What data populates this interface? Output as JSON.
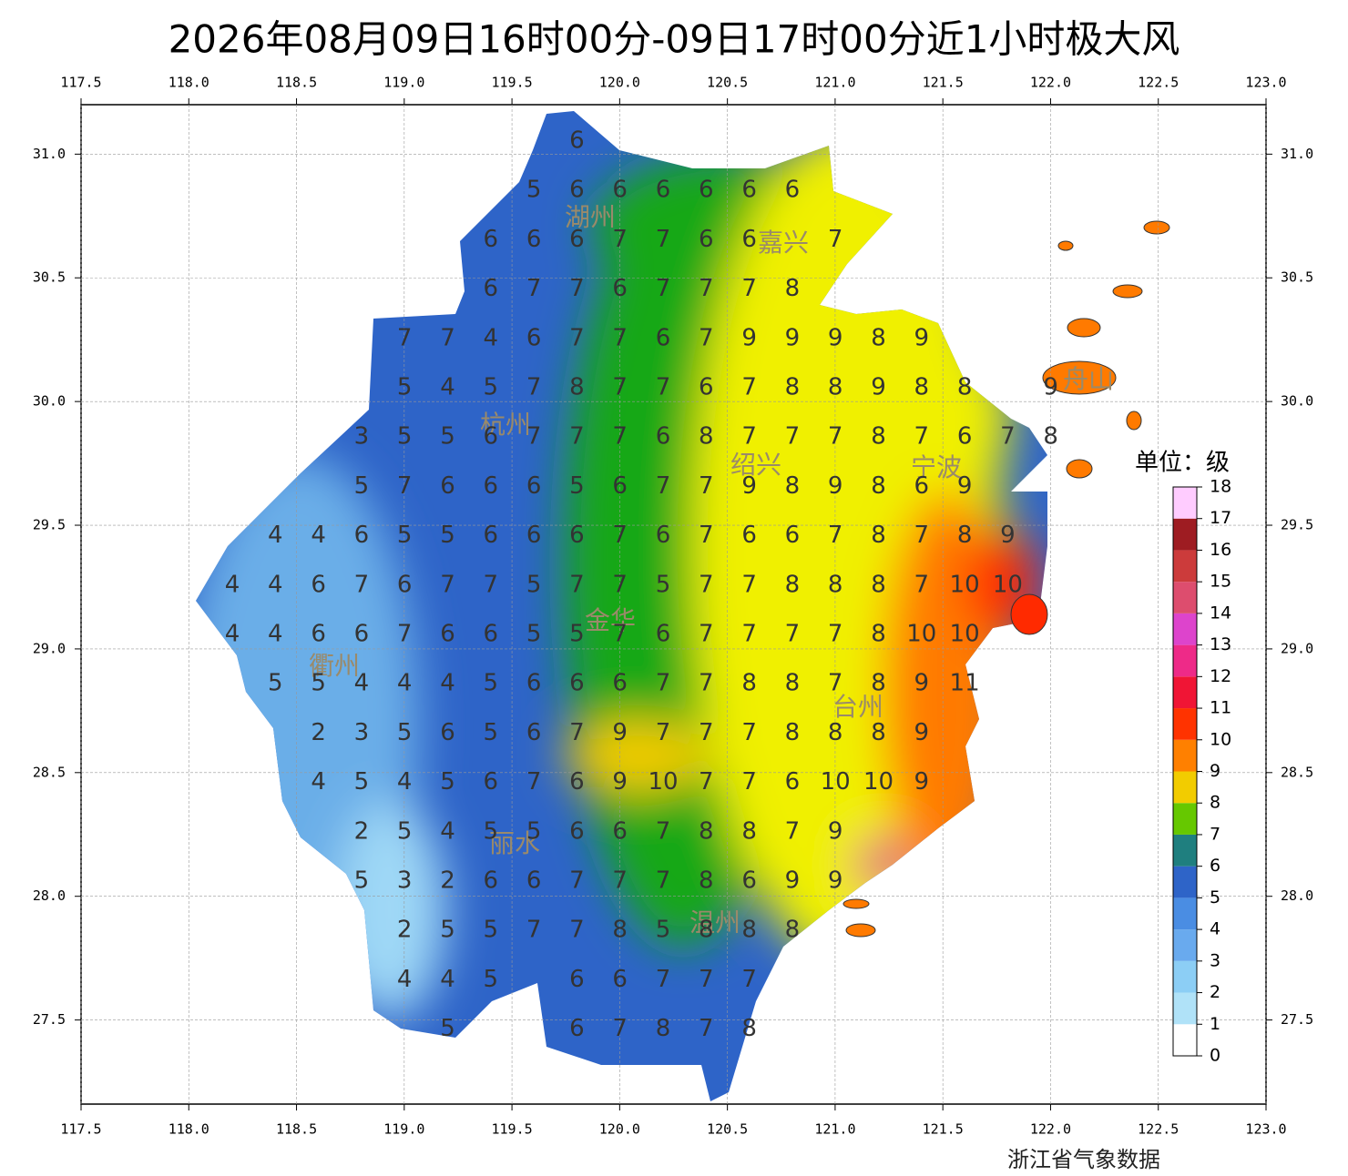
{
  "title": "2026年08月09日16时00分-09日17时00分近1小时极大风",
  "map": {
    "xlim": [
      117.5,
      123.0
    ],
    "ylim": [
      27.16,
      31.2
    ],
    "xticks": [
      {
        "value": 117.5,
        "label": "117.5"
      },
      {
        "value": 118.0,
        "label": "118.0"
      },
      {
        "value": 118.5,
        "label": "118.5"
      },
      {
        "value": 119.0,
        "label": "119.0"
      },
      {
        "value": 119.5,
        "label": "119.5"
      },
      {
        "value": 120.0,
        "label": "120.0"
      },
      {
        "value": 120.5,
        "label": "120.5"
      },
      {
        "value": 121.0,
        "label": "121.0"
      },
      {
        "value": 121.5,
        "label": "121.5"
      },
      {
        "value": 122.0,
        "label": "122.0"
      },
      {
        "value": 122.5,
        "label": "122.5"
      },
      {
        "value": 123.0,
        "label": "123.0"
      }
    ],
    "yticks": [
      {
        "value": 27.5,
        "label": "27.5"
      },
      {
        "value": 28.0,
        "label": "28.0"
      },
      {
        "value": 28.5,
        "label": "28.5"
      },
      {
        "value": 29.0,
        "label": "29.0"
      },
      {
        "value": 29.5,
        "label": "29.5"
      },
      {
        "value": 30.0,
        "label": "30.0"
      },
      {
        "value": 30.5,
        "label": "30.5"
      },
      {
        "value": 31.0,
        "label": "31.0"
      }
    ],
    "grid": true,
    "cities": [
      "湖州",
      "嘉兴",
      "杭州",
      "绍兴",
      "宁波",
      "舟山",
      "衢州",
      "金华",
      "台州",
      "丽水",
      "温州"
    ],
    "stations": [
      [
        null,
        null,
        null,
        null,
        null,
        null,
        null,
        null,
        6,
        null,
        null,
        null,
        null,
        null,
        null,
        null,
        null,
        null,
        null,
        null
      ],
      [
        null,
        null,
        null,
        null,
        null,
        null,
        null,
        5,
        6,
        6,
        6,
        6,
        6,
        6,
        null,
        null,
        null,
        null,
        null,
        null
      ],
      [
        null,
        null,
        null,
        null,
        null,
        null,
        6,
        6,
        6,
        7,
        7,
        6,
        6,
        null,
        7,
        null,
        null,
        null,
        null,
        null
      ],
      [
        null,
        null,
        null,
        null,
        null,
        null,
        6,
        7,
        7,
        6,
        7,
        7,
        7,
        8,
        null,
        null,
        null,
        null,
        null,
        null
      ],
      [
        null,
        null,
        null,
        null,
        7,
        7,
        4,
        6,
        7,
        7,
        6,
        7,
        9,
        9,
        9,
        8,
        9,
        null,
        null,
        null
      ],
      [
        null,
        null,
        null,
        null,
        5,
        4,
        5,
        7,
        8,
        7,
        7,
        6,
        7,
        8,
        8,
        9,
        8,
        8,
        null,
        9
      ],
      [
        null,
        null,
        null,
        3,
        5,
        5,
        6,
        7,
        7,
        7,
        6,
        8,
        7,
        7,
        7,
        8,
        7,
        6,
        7,
        8
      ],
      [
        null,
        null,
        null,
        5,
        7,
        6,
        6,
        6,
        5,
        6,
        7,
        7,
        9,
        8,
        9,
        8,
        6,
        9,
        null,
        null
      ],
      [
        null,
        4,
        4,
        6,
        5,
        5,
        6,
        6,
        6,
        7,
        6,
        7,
        6,
        6,
        7,
        8,
        7,
        8,
        9,
        null
      ],
      [
        4,
        4,
        6,
        7,
        6,
        7,
        7,
        5,
        7,
        7,
        5,
        7,
        7,
        8,
        8,
        8,
        7,
        10,
        10,
        null
      ],
      [
        4,
        4,
        6,
        6,
        7,
        6,
        6,
        5,
        5,
        7,
        6,
        7,
        7,
        7,
        7,
        8,
        10,
        10,
        null,
        null
      ],
      [
        null,
        5,
        5,
        4,
        4,
        4,
        5,
        6,
        6,
        6,
        7,
        7,
        8,
        8,
        7,
        8,
        9,
        11,
        null,
        null
      ],
      [
        null,
        null,
        2,
        3,
        5,
        6,
        5,
        6,
        7,
        9,
        7,
        7,
        7,
        8,
        8,
        8,
        9,
        null,
        null,
        null
      ],
      [
        null,
        null,
        4,
        5,
        4,
        5,
        6,
        7,
        6,
        9,
        10,
        7,
        7,
        6,
        10,
        10,
        9,
        null,
        null,
        null
      ],
      [
        null,
        null,
        null,
        2,
        5,
        4,
        5,
        5,
        6,
        6,
        7,
        8,
        8,
        7,
        9,
        null,
        null,
        null,
        null,
        null
      ],
      [
        null,
        null,
        null,
        5,
        3,
        2,
        6,
        6,
        7,
        7,
        7,
        8,
        6,
        9,
        9,
        null,
        null,
        null,
        null,
        null
      ],
      [
        null,
        null,
        null,
        null,
        2,
        5,
        5,
        7,
        7,
        8,
        5,
        8,
        8,
        8,
        null,
        null,
        null,
        null,
        null,
        null
      ],
      [
        null,
        null,
        null,
        null,
        4,
        4,
        5,
        null,
        6,
        6,
        7,
        7,
        7,
        null,
        null,
        null,
        null,
        null,
        null,
        null
      ],
      [
        null,
        null,
        null,
        null,
        null,
        5,
        null,
        null,
        6,
        7,
        8,
        7,
        8,
        null,
        null,
        null,
        null,
        null,
        null,
        null
      ]
    ]
  },
  "colorbar": {
    "title": "单位：级",
    "levels": [
      0,
      1,
      2,
      3,
      4,
      5,
      6,
      7,
      8,
      9,
      10,
      11,
      12,
      13,
      14,
      15,
      16,
      17,
      18
    ],
    "colors": [
      "#ffffff",
      "#b0e2f8",
      "#8ccef5",
      "#69aaee",
      "#4a8de3",
      "#2e64c8",
      "#1f7f7f",
      "#66c800",
      "#f2cc00",
      "#ff8000",
      "#ff3300",
      "#f01535",
      "#ee2a88",
      "#dd44cc",
      "#dd4d6e",
      "#cc3b3b",
      "#9e1c22",
      "#ffccff"
    ]
  },
  "source": "浙江省气象数据"
}
